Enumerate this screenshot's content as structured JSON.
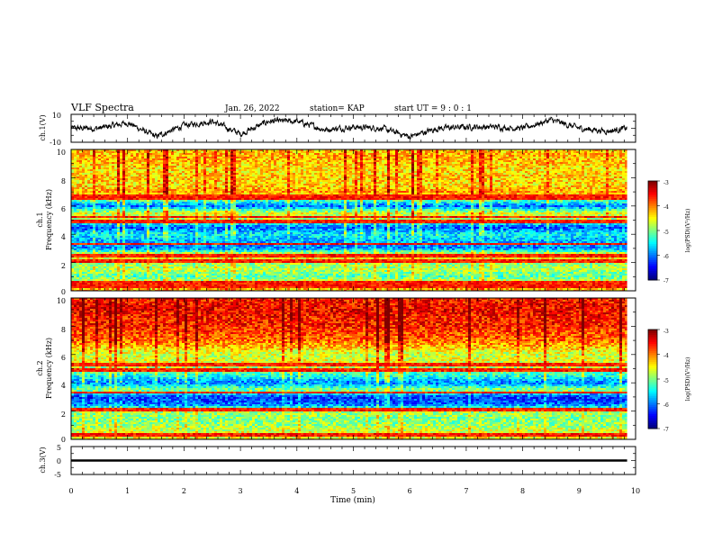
{
  "header": {
    "title": "VLF Spectra",
    "date": "Jan. 26, 2022",
    "station": "station= KAP",
    "start": "start UT =  9 : 0 : 1"
  },
  "chart_data": [
    {
      "type": "line",
      "name": "waveform-ch1",
      "ylabel": "ch.1(V)",
      "ylim": [
        -10,
        10
      ],
      "xlim": [
        0,
        10
      ],
      "yticks": [
        "10",
        "-10"
      ],
      "x_end": 9.85,
      "envelope_x": [
        0,
        0.5,
        1,
        1.5,
        2,
        2.5,
        3,
        3.5,
        4,
        4.5,
        5,
        5.5,
        6,
        6.5,
        7,
        7.5,
        8,
        8.5,
        9,
        9.5,
        9.85
      ],
      "envelope_y": [
        0,
        0,
        4,
        -6,
        2,
        5,
        -4,
        5,
        5,
        -1,
        1,
        0,
        -6,
        0,
        1,
        1,
        0,
        6,
        0,
        -2,
        0
      ]
    },
    {
      "type": "heatmap",
      "name": "spectrogram-ch1",
      "ylabel_line1": "ch.1",
      "ylabel_line2": "Frequency (kHz)",
      "xlim": [
        0,
        10
      ],
      "ylim": [
        0,
        10
      ],
      "yticks": [
        "0",
        "2",
        "4",
        "6",
        "8",
        "10"
      ],
      "x_end": 9.85,
      "colorbar_label": "log(PSD)(V²/Hz)",
      "colorbar_range": [
        -7,
        -3
      ],
      "colorbar_ticks": [
        "-3",
        "-4",
        "-5",
        "-6",
        "-7"
      ],
      "profile_khz": [
        0,
        0.5,
        1,
        1.5,
        2,
        2.5,
        3,
        3.5,
        4,
        4.5,
        5,
        5.5,
        6,
        6.5,
        7,
        7.5,
        8,
        8.5,
        9,
        9.5,
        10
      ],
      "profile_level": [
        -4.2,
        -4.3,
        -5.2,
        -4.8,
        -4.9,
        -4.2,
        -6,
        -5.8,
        -5.5,
        -6.2,
        -4.9,
        -4.6,
        -6.1,
        -4.9,
        -4.1,
        -4.4,
        -4.3,
        -4.4,
        -4.3,
        -4.2,
        -4.3
      ],
      "lines_khz": [
        0.3,
        0.55,
        2.1,
        2.5,
        3.3,
        4.9,
        5.2,
        6.55,
        6.75
      ]
    },
    {
      "type": "heatmap",
      "name": "spectrogram-ch2",
      "ylabel_line1": "ch.2",
      "ylabel_line2": "Frequency (kHz)",
      "xlim": [
        0,
        10
      ],
      "ylim": [
        0,
        10
      ],
      "yticks": [
        "0",
        "2",
        "4",
        "6",
        "8",
        "10"
      ],
      "x_end": 9.85,
      "colorbar_label": "log(PSD)(V²/Hz)",
      "colorbar_range": [
        -7,
        -3
      ],
      "colorbar_ticks": [
        "-3",
        "-4",
        "-5",
        "-6",
        "-7"
      ],
      "profile_khz": [
        0,
        0.5,
        1,
        1.5,
        2,
        2.5,
        3,
        3.5,
        4,
        4.5,
        5,
        5.5,
        6,
        6.5,
        7,
        7.5,
        8,
        8.5,
        9,
        9.5,
        10
      ],
      "profile_level": [
        -4.5,
        -4.6,
        -4.9,
        -5.0,
        -4.8,
        -6.1,
        -6.3,
        -4.9,
        -6.0,
        -5.4,
        -4.9,
        -4.6,
        -4.7,
        -4.3,
        -3.9,
        -3.8,
        -3.6,
        -3.6,
        -3.5,
        -3.5,
        -3.6
      ],
      "lines_khz": [
        0.3,
        2.1,
        3.3,
        4.9,
        5.3
      ]
    },
    {
      "type": "line",
      "name": "waveform-ch3",
      "ylabel": "ch.3(V)",
      "ylim": [
        -5,
        5
      ],
      "xlim": [
        0,
        10
      ],
      "yticks": [
        "5",
        "0",
        "-5"
      ],
      "x_end": 9.85,
      "level_v": 0,
      "band_halfwidth_v": 0.4,
      "xlabel": "Time (min)",
      "xticks": [
        "0",
        "1",
        "2",
        "3",
        "4",
        "5",
        "6",
        "7",
        "8",
        "9",
        "10"
      ]
    }
  ]
}
